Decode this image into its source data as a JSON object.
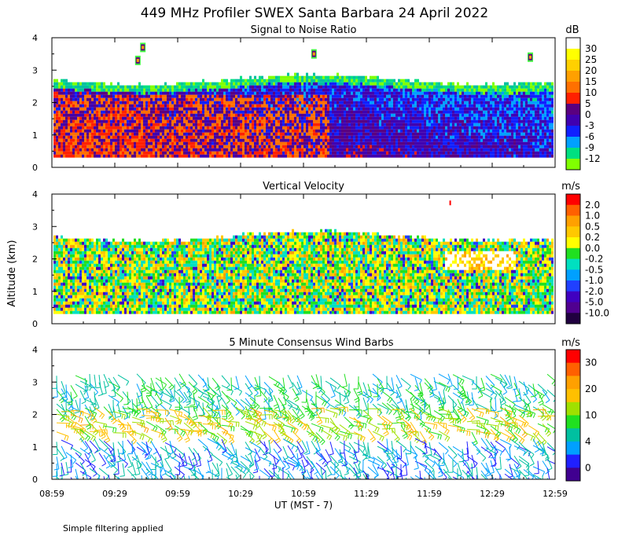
{
  "figure_title": "449 MHz Profiler SWEX Santa Barbara 24 April 2022",
  "y_axis_label": "Altitude (km)",
  "x_axis_label": "UT  (MST - 7)",
  "footnote": "Simple filtering applied",
  "chart_data": [
    {
      "type": "heatmap",
      "title": "Signal to Noise Ratio",
      "xlabel": "UT  (MST - 7)",
      "ylabel": "Altitude (km)",
      "x_ticks": [
        "08:59",
        "09:29",
        "09:59",
        "10:29",
        "10:59",
        "11:29",
        "11:59",
        "12:29",
        "12:59"
      ],
      "y_ticks": [
        "0",
        "1",
        "2",
        "3",
        "4"
      ],
      "ylim": [
        0,
        4
      ],
      "colorbar": {
        "unit": "dB",
        "labels": [
          "30",
          "25",
          "20",
          "15",
          "10",
          "5",
          "0",
          "-3",
          "-6",
          "-9",
          "-12"
        ],
        "colors": [
          "#ffffff",
          "#ffff00",
          "#ffd000",
          "#ffa000",
          "#ff7000",
          "#ff2000",
          "#5a0080",
          "#4000b0",
          "#1020ff",
          "#00a0ff",
          "#00e080",
          "#80ff00"
        ]
      },
      "echo_layer_top_km": 2.7,
      "echo_layer_bottom_km": 0.3,
      "features": [
        "strong SNR 10-15 dB below ~2 km early",
        "SNR decreasing after 11:59",
        "isolated echoes near 3.3-3.8 km"
      ]
    },
    {
      "type": "heatmap",
      "title": "Vertical Velocity",
      "xlabel": "UT  (MST - 7)",
      "ylabel": "Altitude (km)",
      "x_ticks": [
        "08:59",
        "09:29",
        "09:59",
        "10:29",
        "10:59",
        "11:29",
        "11:59",
        "12:29",
        "12:59"
      ],
      "y_ticks": [
        "0",
        "1",
        "2",
        "3",
        "4"
      ],
      "ylim": [
        0,
        4
      ],
      "colorbar": {
        "unit": "m/s",
        "labels": [
          "2.0",
          "1.0",
          "0.5",
          "0.2",
          "0.0",
          "-0.2",
          "-0.5",
          "-1.0",
          "-2.0",
          "-5.0",
          "-10.0"
        ],
        "colors": [
          "#ff0000",
          "#ff6000",
          "#ffa000",
          "#ffc800",
          "#ffff00",
          "#20e020",
          "#00e0c0",
          "#00a0ff",
          "#2040ff",
          "#4000c0",
          "#500090",
          "#200040"
        ]
      },
      "echo_layer_top_km": 2.7,
      "echo_layer_bottom_km": 0.3
    },
    {
      "type": "scatter",
      "title": "5 Minute Consensus Wind Barbs",
      "xlabel": "UT  (MST - 7)",
      "ylabel": "Altitude (km)",
      "x_ticks": [
        "08:59",
        "09:29",
        "09:59",
        "10:29",
        "10:59",
        "11:29",
        "11:59",
        "12:29",
        "12:59"
      ],
      "y_ticks": [
        "0",
        "1",
        "2",
        "3",
        "4"
      ],
      "ylim": [
        0,
        4
      ],
      "colorbar": {
        "unit": "m/s",
        "labels": [
          "30",
          "20",
          "10",
          "4",
          "0"
        ],
        "colors": [
          "#ff0000",
          "#ff6000",
          "#ffa000",
          "#ffc000",
          "#a0e000",
          "#20e020",
          "#00c0a0",
          "#00a0ff",
          "#2020ff",
          "#400090"
        ]
      },
      "layers": [
        {
          "altitude_range_km": [
            2.3,
            3.3
          ],
          "speed_ms": 12
        },
        {
          "altitude_range_km": [
            1.5,
            2.3
          ],
          "speed_ms": 20
        },
        {
          "altitude_range_km": [
            0.1,
            1.4
          ],
          "speed_ms": 8
        }
      ]
    }
  ]
}
